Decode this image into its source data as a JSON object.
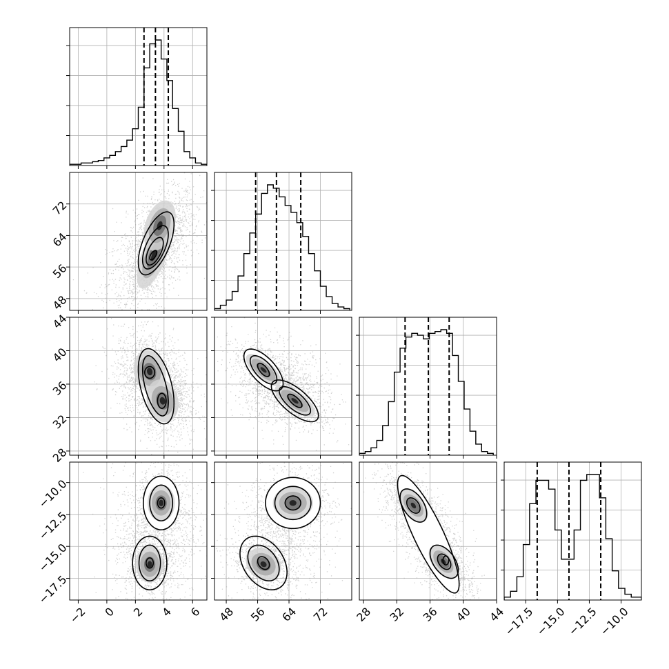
{
  "chart_data": {
    "type": "corner",
    "parameters": [
      {
        "range": [
          -2.6,
          7.0
        ],
        "ticks": [
          -2,
          0,
          2,
          4,
          6
        ],
        "tick_labels": [
          "−2",
          "0",
          "2",
          "4",
          "6"
        ],
        "quantiles": [
          2.6,
          3.4,
          4.3
        ],
        "histogram": {
          "edges": [
            -2.6,
            -2.2,
            -1.8,
            -1.4,
            -1.0,
            -0.6,
            -0.2,
            0.2,
            0.6,
            1.0,
            1.4,
            1.8,
            2.2,
            2.6,
            3.0,
            3.4,
            3.8,
            4.2,
            4.6,
            5.0,
            5.4,
            5.8,
            6.2,
            6.6,
            7.0
          ],
          "counts": [
            1,
            1,
            2,
            2,
            3,
            4,
            6,
            8,
            11,
            15,
            20,
            29,
            46,
            77,
            96,
            99,
            84,
            67,
            45,
            27,
            11,
            6,
            2,
            1
          ]
        }
      },
      {
        "range": [
          45.0,
          80.0
        ],
        "ticks": [
          48,
          56,
          64,
          72
        ],
        "tick_labels": [
          "48",
          "56",
          "64",
          "72"
        ],
        "quantiles": [
          55.5,
          60.8,
          67.0
        ],
        "histogram": {
          "edges": [
            45.0,
            46.5,
            48.0,
            49.5,
            51.0,
            52.5,
            54.0,
            55.5,
            57.0,
            58.5,
            60.0,
            61.5,
            63.0,
            64.5,
            66.0,
            67.5,
            69.0,
            70.5,
            72.0,
            73.5,
            75.0,
            76.5,
            78.0,
            79.5
          ],
          "counts": [
            1,
            3,
            6,
            11,
            20,
            33,
            45,
            56,
            68,
            73,
            71,
            66,
            61,
            57,
            51,
            43,
            33,
            23,
            14,
            8,
            4,
            2,
            1
          ]
        }
      },
      {
        "range": [
          27.5,
          44.0
        ],
        "ticks": [
          28,
          32,
          36,
          40,
          44
        ],
        "tick_labels": [
          "28",
          "32",
          "36",
          "40",
          "44"
        ],
        "quantiles": [
          33.0,
          35.8,
          38.3
        ],
        "histogram": {
          "edges": [
            27.5,
            28.2,
            28.9,
            29.6,
            30.3,
            31.0,
            31.7,
            32.4,
            33.1,
            33.8,
            34.5,
            35.2,
            35.9,
            36.6,
            37.3,
            38.0,
            38.7,
            39.4,
            40.1,
            40.8,
            41.5,
            42.2,
            42.9,
            43.6
          ],
          "counts": [
            1,
            2,
            4,
            8,
            16,
            29,
            45,
            58,
            64,
            66,
            65,
            63,
            66,
            67,
            68,
            66,
            54,
            40,
            25,
            13,
            6,
            2,
            1
          ]
        }
      },
      {
        "range": [
          -19.2,
          -8.4
        ],
        "ticks": [
          -17.5,
          -15.0,
          -12.5,
          -10.0
        ],
        "tick_labels": [
          "−17.5",
          "−15.0",
          "−12.5",
          "−10.0"
        ],
        "quantiles": [
          -16.6,
          -14.1,
          -11.6
        ],
        "histogram": {
          "edges": [
            -19.2,
            -18.7,
            -18.2,
            -17.7,
            -17.2,
            -16.7,
            -16.2,
            -15.7,
            -15.2,
            -14.7,
            -14.2,
            -13.7,
            -13.2,
            -12.7,
            -12.2,
            -11.7,
            -11.2,
            -10.7,
            -10.2,
            -9.7,
            -9.2,
            -8.7,
            -8.4
          ],
          "counts": [
            1,
            3,
            8,
            19,
            33,
            41,
            41,
            38,
            24,
            14,
            14,
            24,
            41,
            43,
            43,
            35,
            21,
            10,
            4,
            2,
            1,
            1
          ]
        }
      }
    ],
    "pairs": [
      {
        "row": 1,
        "col": 0,
        "cloud": {
          "cx": 3.2,
          "cy": 60.0,
          "sx": 1.6,
          "sy": 7.5,
          "rho": 0.55
        },
        "modes": [
          {
            "cx": 3.3,
            "cy": 59.0,
            "sx": 0.75,
            "sy": 5.3,
            "rho": 0.65,
            "w": 1.0
          },
          {
            "cx": 3.7,
            "cy": 66.5,
            "sx": 0.7,
            "sy": 4.0,
            "rho": 0.35,
            "w": 0.6
          }
        ],
        "contours": [
          {
            "cx": 3.45,
            "cy": 62.0,
            "rx": 1.25,
            "ry": 8.0,
            "rho": 0.6
          },
          {
            "cx": 3.4,
            "cy": 61.0,
            "rx": 0.9,
            "ry": 5.5,
            "rho": 0.6
          },
          {
            "cx": 3.35,
            "cy": 60.0,
            "rx": 0.6,
            "ry": 3.5,
            "rho": 0.6
          },
          {
            "cx": 3.25,
            "cy": 59.0,
            "rx": 0.25,
            "ry": 1.2,
            "rho": 0.6
          }
        ]
      },
      {
        "row": 2,
        "col": 0,
        "cloud": {
          "cx": 3.4,
          "cy": 35.8,
          "sx": 1.5,
          "sy": 3.0,
          "rho": -0.35
        },
        "modes": [
          {
            "cx": 3.0,
            "cy": 37.5,
            "sx": 0.7,
            "sy": 1.6,
            "rho": -0.15,
            "w": 1.0
          },
          {
            "cx": 3.9,
            "cy": 34.0,
            "sx": 0.7,
            "sy": 1.6,
            "rho": -0.15,
            "w": 1.0
          }
        ],
        "contours": [
          {
            "cx": 3.45,
            "cy": 35.75,
            "rx": 1.25,
            "ry": 4.5,
            "rho": -0.45
          },
          {
            "cx": 3.4,
            "cy": 35.8,
            "rx": 0.9,
            "ry": 3.6,
            "rho": -0.55
          },
          {
            "cx": 3.0,
            "cy": 37.4,
            "rx": 0.35,
            "ry": 0.7,
            "rho": 0.0
          },
          {
            "cx": 3.85,
            "cy": 34.0,
            "rx": 0.3,
            "ry": 0.9,
            "rho": 0.0
          }
        ]
      },
      {
        "row": 2,
        "col": 1,
        "cloud": {
          "cx": 62.0,
          "cy": 35.8,
          "sx": 6.0,
          "sy": 2.5,
          "rho": -0.25
        },
        "modes": [
          {
            "cx": 57.5,
            "cy": 37.7,
            "sx": 2.8,
            "sy": 1.2,
            "rho": -0.7,
            "w": 1.0
          },
          {
            "cx": 65.5,
            "cy": 34.0,
            "sx": 3.2,
            "sy": 1.2,
            "rho": -0.7,
            "w": 1.0
          }
        ],
        "contours": [
          {
            "cx": 57.5,
            "cy": 37.7,
            "rx": 5.0,
            "ry": 2.5,
            "rho": -0.65
          },
          {
            "cx": 57.5,
            "cy": 37.7,
            "rx": 3.4,
            "ry": 1.7,
            "rho": -0.65
          },
          {
            "cx": 57.5,
            "cy": 37.7,
            "rx": 1.5,
            "ry": 0.8,
            "rho": -0.65
          },
          {
            "cx": 65.5,
            "cy": 34.0,
            "rx": 6.0,
            "ry": 2.5,
            "rho": -0.7
          },
          {
            "cx": 65.5,
            "cy": 34.0,
            "rx": 4.0,
            "ry": 1.7,
            "rho": -0.7
          },
          {
            "cx": 65.5,
            "cy": 34.0,
            "rx": 1.8,
            "ry": 0.8,
            "rho": -0.7
          }
        ]
      },
      {
        "row": 3,
        "col": 0,
        "cloud": {
          "cx": 3.4,
          "cy": -14.1,
          "sx": 1.5,
          "sy": 2.8,
          "rho": 0.1
        },
        "modes": [
          {
            "cx": 3.8,
            "cy": -11.6,
            "sx": 0.6,
            "sy": 0.9,
            "rho": 0.0,
            "w": 1.0
          },
          {
            "cx": 3.0,
            "cy": -16.4,
            "sx": 0.6,
            "sy": 0.9,
            "rho": 0.0,
            "w": 1.0
          }
        ],
        "contours": [
          {
            "cx": 3.8,
            "cy": -11.6,
            "rx": 1.25,
            "ry": 2.1,
            "rho": 0.0
          },
          {
            "cx": 3.8,
            "cy": -11.6,
            "rx": 0.8,
            "ry": 1.4,
            "rho": 0.0
          },
          {
            "cx": 3.8,
            "cy": -11.6,
            "rx": 0.25,
            "ry": 0.4,
            "rho": 0.0
          },
          {
            "cx": 3.0,
            "cy": -16.3,
            "rx": 1.2,
            "ry": 2.1,
            "rho": 0.0
          },
          {
            "cx": 3.0,
            "cy": -16.3,
            "rx": 0.75,
            "ry": 1.4,
            "rho": 0.0
          },
          {
            "cx": 3.0,
            "cy": -16.3,
            "rx": 0.25,
            "ry": 0.4,
            "rho": 0.0
          }
        ]
      },
      {
        "row": 3,
        "col": 1,
        "cloud": {
          "cx": 62.0,
          "cy": -14.1,
          "sx": 6.5,
          "sy": 2.8,
          "rho": 0.3
        },
        "modes": [
          {
            "cx": 65.0,
            "cy": -11.6,
            "sx": 3.2,
            "sy": 0.8,
            "rho": 0.0,
            "w": 1.0
          },
          {
            "cx": 57.5,
            "cy": -16.4,
            "sx": 2.8,
            "sy": 0.8,
            "rho": -0.2,
            "w": 1.0
          }
        ],
        "contours": [
          {
            "cx": 65.0,
            "cy": -11.6,
            "rx": 7.0,
            "ry": 2.0,
            "rho": 0.0
          },
          {
            "cx": 65.0,
            "cy": -11.6,
            "rx": 4.6,
            "ry": 1.3,
            "rho": 0.0
          },
          {
            "cx": 65.0,
            "cy": -11.6,
            "rx": 2.0,
            "ry": 0.55,
            "rho": 0.0
          },
          {
            "cx": 57.5,
            "cy": -16.3,
            "rx": 6.0,
            "ry": 2.1,
            "rho": -0.35
          },
          {
            "cx": 57.5,
            "cy": -16.3,
            "rx": 4.0,
            "ry": 1.4,
            "rho": -0.35
          },
          {
            "cx": 57.5,
            "cy": -16.3,
            "rx": 1.5,
            "ry": 0.5,
            "rho": -0.3
          }
        ]
      },
      {
        "row": 3,
        "col": 2,
        "cloud": {
          "cx": 35.8,
          "cy": -14.1,
          "sx": 2.8,
          "sy": 2.8,
          "rho": -0.75
        },
        "modes": [
          {
            "cx": 34.0,
            "cy": -11.8,
            "sx": 1.1,
            "sy": 0.8,
            "rho": -0.5,
            "w": 1.0
          },
          {
            "cx": 37.6,
            "cy": -16.2,
            "sx": 1.1,
            "sy": 0.8,
            "rho": -0.5,
            "w": 1.0
          }
        ],
        "contours": [
          {
            "cx": 35.8,
            "cy": -14.05,
            "rx": 3.7,
            "ry": 4.6,
            "rho": -0.85
          },
          {
            "cx": 34.0,
            "cy": -11.8,
            "rx": 1.6,
            "ry": 1.3,
            "rho": -0.5
          },
          {
            "cx": 37.7,
            "cy": -16.2,
            "rx": 1.7,
            "ry": 1.3,
            "rho": -0.5
          },
          {
            "cx": 34.0,
            "cy": -11.8,
            "rx": 0.8,
            "ry": 0.6,
            "rho": -0.4
          },
          {
            "cx": 37.7,
            "cy": -16.2,
            "rx": 0.8,
            "ry": 0.6,
            "rho": -0.4
          },
          {
            "cx": 37.9,
            "cy": -16.1,
            "rx": 0.35,
            "ry": 0.35,
            "rho": 0.0
          }
        ]
      }
    ],
    "grid": true,
    "colors": {
      "line": "#000000",
      "grid": "#b0b0b0",
      "points": "#9a9a9a"
    }
  }
}
